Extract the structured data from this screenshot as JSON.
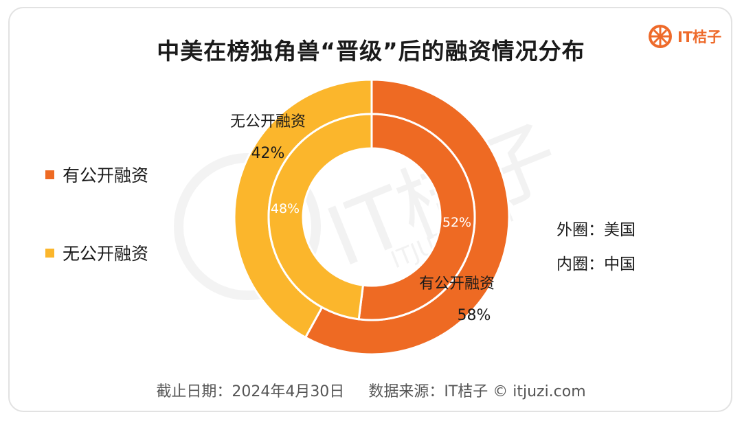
{
  "title": "中美在榜独角兽“晋级”后的融资情况分布",
  "brand": {
    "name": "IT桔子",
    "icon": "orange-slice-icon",
    "color": "#ee6a2a"
  },
  "legend": [
    {
      "label": "有公开融资",
      "color": "#ee6a23"
    },
    {
      "label": "无公开融资",
      "color": "#fbb62c"
    }
  ],
  "notes": {
    "outer": "外圈：美国",
    "inner": "内圈：中国"
  },
  "footer": {
    "date": "截止日期：2024年4月30日",
    "source": "数据来源：IT桔子 © itjuzi.com"
  },
  "watermark": {
    "text": "IT桔子",
    "sub": "ITJUZI.COM"
  },
  "chart_data": {
    "type": "pie",
    "subtype": "nested-donut",
    "categories": [
      "有公开融资",
      "无公开融资"
    ],
    "series": [
      {
        "name": "外圈：美国",
        "ring": "outer",
        "values": [
          58,
          42
        ],
        "labels": [
          "58%",
          "42%"
        ]
      },
      {
        "name": "内圈：中国",
        "ring": "inner",
        "values": [
          52,
          48
        ],
        "labels": [
          "52%",
          "48%"
        ]
      }
    ],
    "colors": [
      "#ee6a23",
      "#fbb62c"
    ],
    "start_angle": "12 o'clock",
    "direction": "clockwise",
    "legend_position": "left"
  }
}
